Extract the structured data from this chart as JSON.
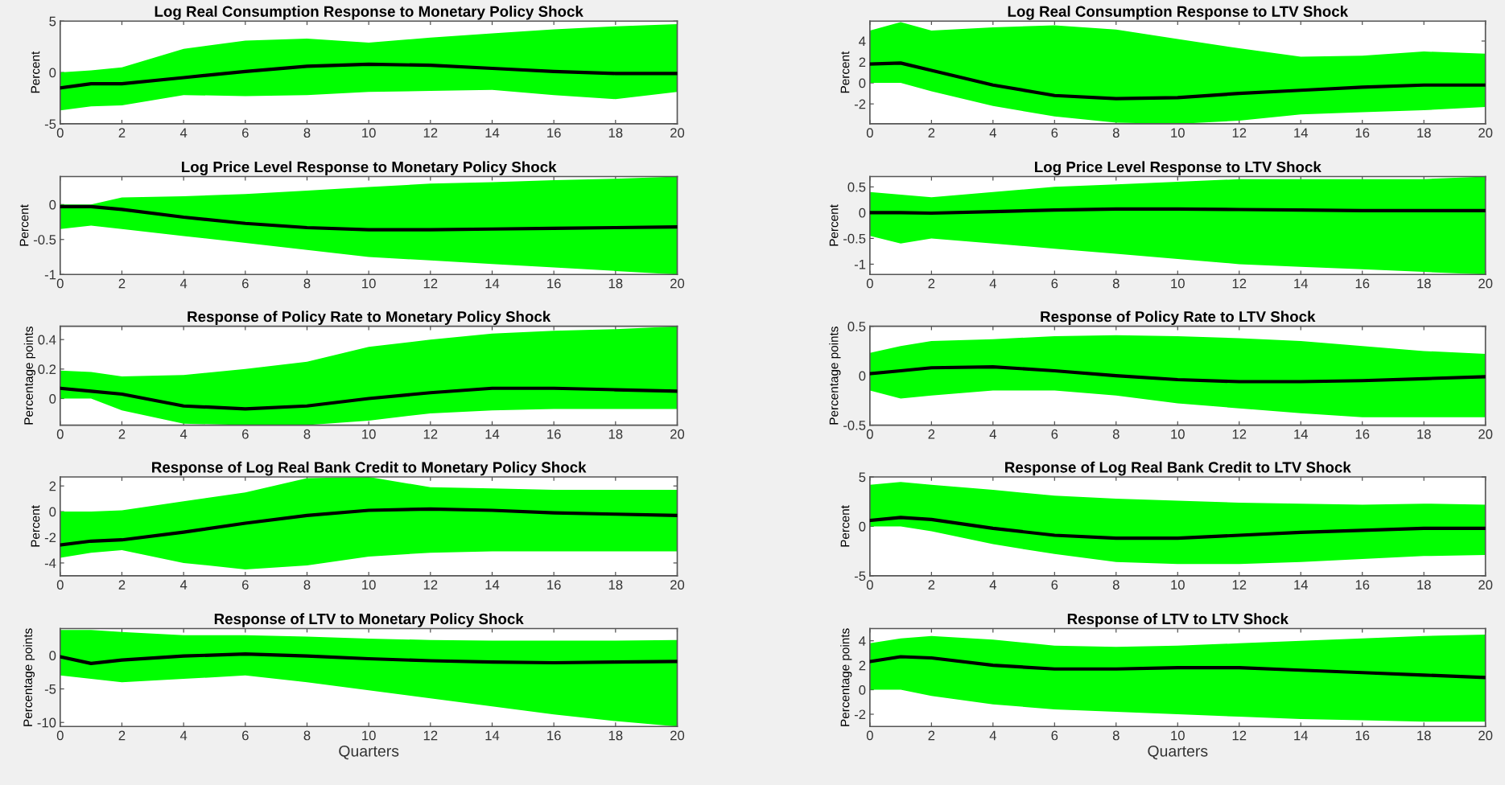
{
  "chart_data": [
    {
      "type": "line",
      "title": "Log Real Consumption Response to Monetary Policy Shock",
      "ylabel": "Percent",
      "xlim": [
        0,
        20
      ],
      "xticks": [
        0,
        2,
        4,
        6,
        8,
        10,
        12,
        14,
        16,
        18,
        20
      ],
      "ylim": [
        -5,
        5
      ],
      "yticks": [
        -5,
        0,
        5
      ],
      "series": [
        {
          "color": "#000000",
          "x": [
            0,
            1,
            2,
            4,
            6,
            8,
            10,
            12,
            14,
            16,
            18,
            20
          ],
          "values": [
            -1.5,
            -1.1,
            -1.1,
            -0.5,
            0.1,
            0.6,
            0.8,
            0.7,
            0.4,
            0.1,
            -0.1,
            -0.1
          ],
          "lower": [
            -3.7,
            -3.3,
            -3.2,
            -2.2,
            -2.3,
            -2.2,
            -1.9,
            -1.8,
            -1.7,
            -2.2,
            -2.6,
            -1.9
          ],
          "upper": [
            0,
            0.2,
            0.5,
            2.3,
            3.1,
            3.3,
            2.9,
            3.4,
            3.8,
            4.2,
            4.5,
            4.7
          ]
        }
      ]
    },
    {
      "type": "line",
      "title": "Log Real Consumption Response to LTV Shock",
      "ylabel": "Percent",
      "xlim": [
        0,
        20
      ],
      "xticks": [
        0,
        2,
        4,
        6,
        8,
        10,
        12,
        14,
        16,
        18,
        20
      ],
      "ylim": [
        -3.9,
        5.9
      ],
      "yticks": [
        -2,
        0,
        2,
        4
      ],
      "series": [
        {
          "color": "#000000",
          "x": [
            0,
            1,
            2,
            4,
            6,
            8,
            10,
            12,
            14,
            16,
            18,
            20
          ],
          "values": [
            1.8,
            1.9,
            1.2,
            -0.2,
            -1.2,
            -1.5,
            -1.4,
            -1.0,
            -0.7,
            -0.4,
            -0.2,
            -0.2
          ],
          "lower": [
            0,
            0,
            -0.8,
            -2.2,
            -3.2,
            -3.8,
            -3.9,
            -3.6,
            -3.0,
            -2.8,
            -2.6,
            -2.3
          ],
          "upper": [
            5,
            5.8,
            5,
            5.3,
            5.5,
            5.1,
            4.2,
            3.3,
            2.5,
            2.6,
            3.0,
            2.8
          ]
        }
      ]
    },
    {
      "type": "line",
      "title": "Log Price Level Response to Monetary Policy Shock",
      "ylabel": "Percent",
      "xlim": [
        0,
        20
      ],
      "xticks": [
        0,
        2,
        4,
        6,
        8,
        10,
        12,
        14,
        16,
        18,
        20
      ],
      "ylim": [
        -1,
        0.4
      ],
      "yticks": [
        -1,
        -0.5,
        0
      ],
      "series": [
        {
          "color": "#000000",
          "x": [
            0,
            1,
            2,
            4,
            6,
            8,
            10,
            12,
            14,
            16,
            18,
            20
          ],
          "values": [
            -0.03,
            -0.03,
            -0.07,
            -0.18,
            -0.27,
            -0.33,
            -0.36,
            -0.36,
            -0.35,
            -0.34,
            -0.33,
            -0.32
          ],
          "lower": [
            -0.35,
            -0.3,
            -0.35,
            -0.45,
            -0.55,
            -0.65,
            -0.75,
            -0.8,
            -0.85,
            -0.9,
            -0.95,
            -1.0
          ],
          "upper": [
            0,
            0,
            0.1,
            0.12,
            0.15,
            0.2,
            0.25,
            0.3,
            0.32,
            0.35,
            0.37,
            0.4
          ]
        }
      ]
    },
    {
      "type": "line",
      "title": "Log Price Level Response to LTV Shock",
      "ylabel": "Percent",
      "xlim": [
        0,
        20
      ],
      "xticks": [
        0,
        2,
        4,
        6,
        8,
        10,
        12,
        14,
        16,
        18,
        20
      ],
      "ylim": [
        -1.2,
        0.7
      ],
      "yticks": [
        -1,
        -0.5,
        0,
        0.5
      ],
      "series": [
        {
          "color": "#000000",
          "x": [
            0,
            1,
            2,
            4,
            6,
            8,
            10,
            12,
            14,
            16,
            18,
            20
          ],
          "values": [
            0,
            0,
            -0.01,
            0.02,
            0.05,
            0.07,
            0.07,
            0.06,
            0.05,
            0.04,
            0.04,
            0.04
          ],
          "lower": [
            -0.45,
            -0.6,
            -0.5,
            -0.6,
            -0.7,
            -0.8,
            -0.9,
            -1.0,
            -1.05,
            -1.1,
            -1.15,
            -1.2
          ],
          "upper": [
            0.4,
            0.35,
            0.3,
            0.4,
            0.5,
            0.55,
            0.6,
            0.65,
            0.65,
            0.65,
            0.65,
            0.7
          ]
        }
      ]
    },
    {
      "type": "line",
      "title": "Response of Policy Rate to Monetary Policy Shock",
      "ylabel": "Percentage points",
      "xlim": [
        0,
        20
      ],
      "xticks": [
        0,
        2,
        4,
        6,
        8,
        10,
        12,
        14,
        16,
        18,
        20
      ],
      "ylim": [
        -0.18,
        0.49
      ],
      "yticks": [
        0,
        0.2,
        0.4
      ],
      "series": [
        {
          "color": "#000000",
          "x": [
            0,
            1,
            2,
            4,
            6,
            8,
            10,
            12,
            14,
            16,
            18,
            20
          ],
          "values": [
            0.07,
            0.05,
            0.03,
            -0.05,
            -0.07,
            -0.05,
            0.0,
            0.04,
            0.07,
            0.07,
            0.06,
            0.05
          ],
          "lower": [
            0,
            0,
            -0.08,
            -0.17,
            -0.18,
            -0.18,
            -0.15,
            -0.1,
            -0.08,
            -0.07,
            -0.07,
            -0.07
          ],
          "upper": [
            0.19,
            0.18,
            0.15,
            0.16,
            0.2,
            0.25,
            0.35,
            0.4,
            0.44,
            0.46,
            0.47,
            0.49
          ]
        }
      ]
    },
    {
      "type": "line",
      "title": "Response of Policy Rate to LTV Shock",
      "ylabel": "Percentage points",
      "xlim": [
        0,
        20
      ],
      "xticks": [
        0,
        2,
        4,
        6,
        8,
        10,
        12,
        14,
        16,
        18,
        20
      ],
      "ylim": [
        -0.5,
        0.5
      ],
      "yticks": [
        -0.5,
        0,
        0.5
      ],
      "series": [
        {
          "color": "#000000",
          "x": [
            0,
            1,
            2,
            4,
            6,
            8,
            10,
            12,
            14,
            16,
            18,
            20
          ],
          "values": [
            0.02,
            0.05,
            0.08,
            0.09,
            0.05,
            0,
            -0.04,
            -0.06,
            -0.06,
            -0.05,
            -0.03,
            -0.01
          ],
          "lower": [
            -0.15,
            -0.23,
            -0.2,
            -0.15,
            -0.15,
            -0.2,
            -0.28,
            -0.33,
            -0.38,
            -0.42,
            -0.42,
            -0.42
          ],
          "upper": [
            0.23,
            0.3,
            0.35,
            0.37,
            0.4,
            0.41,
            0.4,
            0.38,
            0.35,
            0.3,
            0.25,
            0.22
          ]
        }
      ]
    },
    {
      "type": "line",
      "title": "Response of Log Real Bank Credit to Monetary Policy Shock",
      "ylabel": "Percent",
      "xlim": [
        0,
        20
      ],
      "xticks": [
        0,
        2,
        4,
        6,
        8,
        10,
        12,
        14,
        16,
        18,
        20
      ],
      "ylim": [
        -5,
        2.7
      ],
      "yticks": [
        -4,
        -2,
        0,
        2
      ],
      "series": [
        {
          "color": "#000000",
          "x": [
            0,
            1,
            2,
            4,
            6,
            8,
            10,
            12,
            14,
            16,
            18,
            20
          ],
          "values": [
            -2.6,
            -2.3,
            -2.2,
            -1.6,
            -0.9,
            -0.3,
            0.1,
            0.2,
            0.1,
            -0.1,
            -0.2,
            -0.3
          ],
          "lower": [
            -3.6,
            -3.2,
            -3.0,
            -4.0,
            -4.5,
            -4.2,
            -3.5,
            -3.2,
            -3.1,
            -3.1,
            -3.1,
            -3.1
          ],
          "upper": [
            0,
            0,
            0.1,
            0.8,
            1.5,
            2.6,
            2.7,
            1.9,
            1.8,
            1.7,
            1.7,
            1.7
          ]
        }
      ]
    },
    {
      "type": "line",
      "title": "Response of Log Real Bank Credit to LTV Shock",
      "ylabel": "Percent",
      "xlim": [
        0,
        20
      ],
      "xticks": [
        0,
        2,
        4,
        6,
        8,
        10,
        12,
        14,
        16,
        18,
        20
      ],
      "ylim": [
        -5,
        5
      ],
      "yticks": [
        -5,
        0,
        5
      ],
      "series": [
        {
          "color": "#000000",
          "x": [
            0,
            1,
            2,
            4,
            6,
            8,
            10,
            12,
            14,
            16,
            18,
            20
          ],
          "values": [
            0.6,
            0.9,
            0.7,
            -0.2,
            -0.9,
            -1.2,
            -1.2,
            -0.9,
            -0.6,
            -0.4,
            -0.2,
            -0.2
          ],
          "lower": [
            0,
            0,
            -0.5,
            -1.8,
            -2.8,
            -3.6,
            -3.8,
            -3.8,
            -3.6,
            -3.3,
            -3.0,
            -2.9
          ],
          "upper": [
            4.2,
            4.5,
            4.2,
            3.7,
            3.1,
            2.8,
            2.6,
            2.4,
            2.3,
            2.2,
            2.3,
            2.2
          ]
        }
      ]
    },
    {
      "type": "line",
      "title": "Response of LTV to Monetary Policy Shock",
      "xlabel": "Quarters",
      "ylabel": "Percentage points",
      "xlim": [
        0,
        20
      ],
      "xticks": [
        0,
        2,
        4,
        6,
        8,
        10,
        12,
        14,
        16,
        18,
        20
      ],
      "ylim": [
        -10.6,
        4
      ],
      "yticks": [
        -10,
        -5,
        0
      ],
      "series": [
        {
          "color": "#000000",
          "x": [
            0,
            1,
            2,
            4,
            6,
            8,
            10,
            12,
            14,
            16,
            18,
            20
          ],
          "values": [
            -0.2,
            -1.2,
            -0.7,
            -0.1,
            0.2,
            -0.1,
            -0.5,
            -0.8,
            -1.0,
            -1.1,
            -1.0,
            -0.9
          ],
          "lower": [
            -3,
            -3.5,
            -4,
            -3.5,
            -3,
            -4,
            -5.2,
            -6.4,
            -7.6,
            -8.8,
            -9.8,
            -10.6
          ],
          "upper": [
            3.8,
            3.8,
            3.5,
            3,
            3,
            2.8,
            2.5,
            2.3,
            2.2,
            2.2,
            2.2,
            2.3
          ]
        }
      ]
    },
    {
      "type": "line",
      "title": "Response of LTV to LTV Shock",
      "xlabel": "Quarters",
      "ylabel": "Percentage points",
      "xlim": [
        0,
        20
      ],
      "xticks": [
        0,
        2,
        4,
        6,
        8,
        10,
        12,
        14,
        16,
        18,
        20
      ],
      "ylim": [
        -3,
        5
      ],
      "yticks": [
        -2,
        0,
        2,
        4
      ],
      "series": [
        {
          "color": "#000000",
          "x": [
            0,
            1,
            2,
            4,
            6,
            8,
            10,
            12,
            14,
            16,
            18,
            20
          ],
          "values": [
            2.3,
            2.7,
            2.6,
            2.0,
            1.7,
            1.7,
            1.8,
            1.8,
            1.6,
            1.4,
            1.2,
            1.0
          ],
          "lower": [
            0,
            0,
            -0.5,
            -1.2,
            -1.6,
            -1.8,
            -2,
            -2.2,
            -2.4,
            -2.5,
            -2.6,
            -2.6
          ],
          "upper": [
            3.8,
            4.2,
            4.4,
            4.1,
            3.6,
            3.5,
            3.6,
            3.8,
            4.0,
            4.2,
            4.4,
            4.5
          ]
        }
      ]
    }
  ]
}
